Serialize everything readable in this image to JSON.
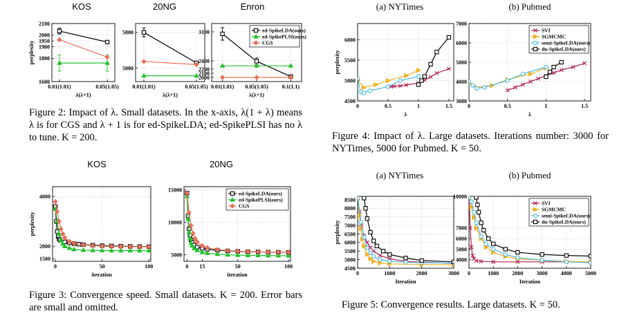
{
  "captions": {
    "fig2": "Figure 2: Impact of λ. Small datasets. In the x-axis, λ(1 + λ) means λ is for CGS and λ + 1 is for ed-SpikeLDA; ed-SpikePLSI has no λ to tune. K = 200.",
    "fig3": "Figure 3: Convergence speed. Small datasets. K = 200. Error bars are small and omitted.",
    "fig4": "Figure 4: Impact of λ. Large datasets. Iterations number: 3000 for NYTimes, 5000 for Pubmed. K = 50.",
    "fig5": "Figure 5: Convergence results. Large datasets. K = 50."
  },
  "colors": {
    "black": "#000000",
    "red": "#e8705a",
    "green": "#22c02a",
    "crimson": "#b02050",
    "orange": "#f5b020",
    "cyan": "#45b8e0"
  },
  "chart_data": [
    {
      "id": "fig2-kos",
      "type": "line",
      "title": "KOS",
      "xlabel": "λ(λ+1)",
      "ylabel": "perplexity",
      "categories": [
        "0.01(1.01)",
        "0.05(1.05)"
      ],
      "ylim": [
        1600,
        2100
      ],
      "yticks": [
        1600,
        1800,
        1900,
        1950,
        2000,
        2100
      ],
      "series": [
        {
          "name": "ed-SpikeLDA(ours)",
          "values": [
            2035,
            1940
          ],
          "err": [
            25,
            10
          ]
        },
        {
          "name": "ed-SpikePLSI(ours)",
          "values": [
            1760,
            1760
          ],
          "err": [
            70,
            70
          ]
        },
        {
          "name": "CGS",
          "values": [
            1960,
            1810
          ]
        }
      ]
    },
    {
      "id": "fig2-20ng",
      "type": "line",
      "title": "20NG",
      "xlabel": "λ(λ+1)",
      "ylabel": "",
      "categories": [
        "0.01(1.01)",
        "0.05(1.05)"
      ],
      "ylim": [
        4700,
        6000
      ],
      "yticks": [
        5000,
        5800
      ],
      "series": [
        {
          "name": "ed-SpikeLDA(ours)",
          "values": [
            5800,
            5120
          ],
          "err": [
            100,
            40
          ]
        },
        {
          "name": "ed-SpikePLSI(ours)",
          "values": [
            4830,
            4830
          ]
        },
        {
          "name": "CGS",
          "values": [
            5150,
            5080
          ]
        }
      ]
    },
    {
      "id": "fig2-enron",
      "type": "line",
      "title": "Enron",
      "xlabel": "λ(λ+1)",
      "ylabel": "",
      "categories": [
        "0.01(1.01)",
        "0.05(1.05)",
        "0.1(1.1)"
      ],
      "ylim": [
        1900,
        3300
      ],
      "yticks": [
        2000,
        2100,
        2200,
        2400,
        3100
      ],
      "legend": "top-right",
      "series": [
        {
          "name": "ed-SpikeLDA(ours)",
          "values": [
            3050,
            2390,
            2020
          ],
          "err": [
            150,
            80,
            20
          ]
        },
        {
          "name": "ed-SpikePLSI(ours)",
          "values": [
            2280,
            2280,
            2280
          ]
        },
        {
          "name": "CGS",
          "values": [
            2000,
            2000,
            2000
          ]
        }
      ]
    },
    {
      "id": "fig3-kos",
      "type": "line",
      "title": "KOS",
      "xlabel": "iteration",
      "ylabel": "perplexity",
      "xlim": [
        -3,
        102
      ],
      "ylim": [
        1400,
        4400
      ],
      "xticks": [
        0,
        50,
        100
      ],
      "yticks": [
        1500,
        2000,
        4000
      ],
      "series": [
        {
          "name": "ed-SpikeLDA(ours)",
          "x": [
            0,
            1,
            2,
            3,
            4,
            5,
            10,
            15,
            20,
            25,
            30,
            40,
            50,
            60,
            70,
            80,
            90,
            100
          ],
          "y": [
            3600,
            3000,
            2600,
            2400,
            2300,
            2250,
            2180,
            2140,
            2110,
            2090,
            2070,
            2050,
            2030,
            2020,
            2010,
            2000,
            1995,
            1990
          ]
        },
        {
          "name": "ed-SpikePLSI(ours)",
          "x": [
            0,
            2,
            4,
            6,
            8,
            10,
            15,
            20,
            30,
            40,
            50,
            60,
            70,
            80,
            90,
            100
          ],
          "y": [
            3500,
            3000,
            2500,
            2250,
            2100,
            2000,
            1930,
            1880,
            1850,
            1840,
            1835,
            1830,
            1830,
            1830,
            1830,
            1830
          ]
        },
        {
          "name": "CGS",
          "x": [
            0,
            2,
            4,
            6,
            8,
            10,
            15,
            20,
            30,
            40,
            50,
            60,
            70,
            80,
            90,
            100
          ],
          "y": [
            3800,
            3400,
            3000,
            2700,
            2500,
            2350,
            2200,
            2120,
            2060,
            2030,
            2010,
            2000,
            1995,
            1990,
            1985,
            1980
          ]
        }
      ]
    },
    {
      "id": "fig3-20ng",
      "type": "line",
      "title": "20NG",
      "xlabel": "iteration",
      "ylabel": "",
      "xlim": [
        -3,
        102
      ],
      "ylim": [
        4000,
        15500
      ],
      "xticks": [
        0,
        15,
        50,
        100
      ],
      "yticks": [
        5000,
        10000,
        15000
      ],
      "legend": "top-right",
      "series": [
        {
          "name": "ed-SpikeLDA(ours)",
          "x": [
            0,
            1,
            2,
            3,
            4,
            5,
            7,
            10,
            15,
            20,
            30,
            40,
            50,
            60,
            70,
            80,
            90,
            100
          ],
          "y": [
            14500,
            11000,
            9000,
            8000,
            7300,
            6900,
            6500,
            6200,
            6000,
            5850,
            5700,
            5600,
            5530,
            5480,
            5450,
            5420,
            5400,
            5380
          ]
        },
        {
          "name": "ed-SpikePLSI(ours)",
          "x": [
            0,
            1,
            2,
            3,
            4,
            5,
            7,
            10,
            15,
            20,
            30,
            40,
            50,
            60,
            70,
            80,
            90,
            100
          ],
          "y": [
            14000,
            10500,
            8500,
            7500,
            6800,
            6400,
            6000,
            5700,
            5400,
            5250,
            5100,
            5000,
            4950,
            4920,
            4900,
            4880,
            4870,
            4860
          ]
        },
        {
          "name": "CGS",
          "x": [
            0,
            2,
            4,
            6,
            8,
            10,
            15,
            20,
            30,
            40,
            50,
            60,
            70,
            80,
            90,
            100
          ],
          "y": [
            14500,
            11500,
            9500,
            8300,
            7500,
            7000,
            6400,
            6100,
            5800,
            5650,
            5550,
            5500,
            5460,
            5430,
            5410,
            5390
          ]
        }
      ]
    },
    {
      "id": "fig4-nytimes",
      "type": "line",
      "title": "(a) NYTimes",
      "xlabel": "λ",
      "ylabel": "perplexity",
      "xlim": [
        0,
        1.58
      ],
      "ylim": [
        4500,
        6400
      ],
      "xticks": [
        0,
        0.5,
        1,
        1.5
      ],
      "yticks": [
        4500,
        5000,
        5500,
        6000
      ],
      "series": [
        {
          "name": "SVI",
          "x": [
            0.55,
            0.6,
            0.7,
            0.8,
            1.0,
            1.1,
            1.2,
            1.3,
            1.5
          ],
          "y": [
            4850,
            4860,
            4870,
            4890,
            4940,
            5010,
            5090,
            5180,
            5290
          ]
        },
        {
          "name": "SGMCMC",
          "x": [
            0,
            0.1,
            0.3,
            0.5,
            0.8,
            1.0
          ],
          "y": [
            5020,
            4830,
            4900,
            5000,
            5120,
            5250
          ]
        },
        {
          "name": "semi-SpikeLDA(ours)",
          "x": [
            0,
            0.05,
            0.1,
            0.2,
            0.5,
            0.7,
            1.0
          ],
          "y": [
            5050,
            4720,
            4700,
            4750,
            4850,
            5000,
            5100
          ]
        },
        {
          "name": "du-SpikeLDA(ours)",
          "x": [
            1.0,
            1.05,
            1.1,
            1.2,
            1.3,
            1.5
          ],
          "y": [
            4900,
            5000,
            5100,
            5400,
            5700,
            6060
          ]
        }
      ]
    },
    {
      "id": "fig4-pubmed",
      "type": "line",
      "title": "(b) Pubmed",
      "xlabel": "λ",
      "ylabel": "",
      "xlim": [
        0,
        1.58
      ],
      "ylim": [
        3000,
        7000
      ],
      "xticks": [
        0,
        0.5,
        1,
        1.5
      ],
      "yticks": [
        3000,
        4000,
        5000,
        6000,
        7000
      ],
      "legend": "top-right",
      "series": [
        {
          "name": "SVI",
          "x": [
            0.5,
            0.6,
            0.7,
            0.8,
            0.9,
            1.0,
            1.1,
            1.2,
            1.35,
            1.5
          ],
          "y": [
            3550,
            3700,
            3850,
            4000,
            4150,
            4300,
            4450,
            4600,
            4750,
            4950
          ]
        },
        {
          "name": "SGMCMC",
          "x": [
            0,
            0.1,
            0.3,
            0.5,
            0.8,
            1.0
          ],
          "y": [
            3900,
            3700,
            3800,
            4100,
            4400,
            4700
          ]
        },
        {
          "name": "semi-SpikeLDA(ours)",
          "x": [
            0,
            0.05,
            0.1,
            0.2,
            0.5,
            0.7,
            1.0
          ],
          "y": [
            4000,
            3800,
            3650,
            3700,
            4050,
            4400,
            4750
          ]
        },
        {
          "name": "du-SpikeLDA(ours)",
          "x": [
            1.0,
            1.05,
            1.1,
            1.2
          ],
          "y": [
            4250,
            4500,
            4750,
            5000
          ]
        }
      ]
    },
    {
      "id": "fig5-nytimes",
      "type": "line",
      "title": "(a) NYTimes",
      "xlabel": "Iteration",
      "ylabel": "perplexity",
      "xlim": [
        0,
        3000
      ],
      "ylim": [
        4500,
        8700
      ],
      "xticks": [
        0,
        1000,
        2000,
        3000
      ],
      "yticks": [
        4500,
        5000,
        5500,
        6000,
        6500,
        7000,
        7500,
        8000,
        8500
      ],
      "series": [
        {
          "name": "SVI",
          "x": [
            10,
            60,
            120,
            200,
            300,
            400,
            500,
            700,
            1000,
            1500,
            2000,
            3000
          ],
          "y": [
            8600,
            7800,
            7000,
            6400,
            6000,
            5700,
            5500,
            5250,
            5050,
            4900,
            4850,
            4780
          ]
        },
        {
          "name": "SGMCMC",
          "x": [
            10,
            50,
            100,
            150,
            200,
            300,
            400,
            500,
            700,
            1000,
            2000,
            3000
          ],
          "y": [
            8600,
            7600,
            6800,
            6200,
            5800,
            5300,
            5050,
            4900,
            4800,
            4750,
            4720,
            4700
          ]
        },
        {
          "name": "semi-SpikeLDA(ours)",
          "x": [
            10,
            100,
            200,
            300,
            400,
            500,
            700,
            1000,
            1500,
            2000,
            3000
          ],
          "y": [
            8600,
            7200,
            6300,
            5700,
            5400,
            5200,
            5000,
            4900,
            4850,
            4820,
            4800
          ]
        },
        {
          "name": "du-SpikeLDA(ours)",
          "x": [
            200,
            250,
            300,
            400,
            500,
            600,
            800,
            1000,
            1500,
            2000,
            3000
          ],
          "y": [
            8600,
            8000,
            7400,
            6600,
            6100,
            5800,
            5500,
            5300,
            5100,
            4950,
            4870
          ]
        }
      ]
    },
    {
      "id": "fig5-pubmed",
      "type": "line",
      "title": "(b) Pubmed",
      "xlabel": "Iteration",
      "ylabel": "",
      "xlim": [
        0,
        5000
      ],
      "ylim": [
        3200,
        10000
      ],
      "xticks": [
        0,
        1000,
        2000,
        3000,
        4000,
        5000
      ],
      "yticks": [
        4000,
        5000,
        6000,
        7000,
        10000
      ],
      "legend": "top-right",
      "series": [
        {
          "name": "SVI",
          "x": [
            10,
            50,
            100,
            150,
            200,
            300,
            500,
            1000,
            2000,
            3000,
            4000,
            5000
          ],
          "y": [
            9800,
            7000,
            5200,
            4400,
            4100,
            3900,
            3850,
            3800,
            3800,
            3800,
            3800,
            3780
          ]
        },
        {
          "name": "SGMCMC",
          "x": [
            10,
            100,
            200,
            300,
            500,
            700,
            1000,
            1500,
            2000,
            3000,
            4000,
            5000
          ],
          "y": [
            9900,
            9000,
            8000,
            7000,
            6000,
            5200,
            4700,
            4300,
            4100,
            3950,
            3850,
            3800
          ]
        },
        {
          "name": "semi-SpikeLDA(ours)",
          "x": [
            10,
            100,
            200,
            300,
            500,
            700,
            1000,
            1500,
            2000,
            3000,
            4000,
            5000
          ],
          "y": [
            9900,
            9500,
            8500,
            7500,
            6200,
            5500,
            5000,
            4500,
            4200,
            3950,
            3800,
            3720
          ]
        },
        {
          "name": "du-SpikeLDA(ours)",
          "x": [
            300,
            350,
            400,
            500,
            600,
            800,
            1000,
            1500,
            2000,
            3000,
            4000,
            5000
          ],
          "y": [
            9900,
            9200,
            8500,
            7500,
            6800,
            6000,
            5500,
            5000,
            4700,
            4500,
            4400,
            4350
          ]
        }
      ]
    }
  ]
}
